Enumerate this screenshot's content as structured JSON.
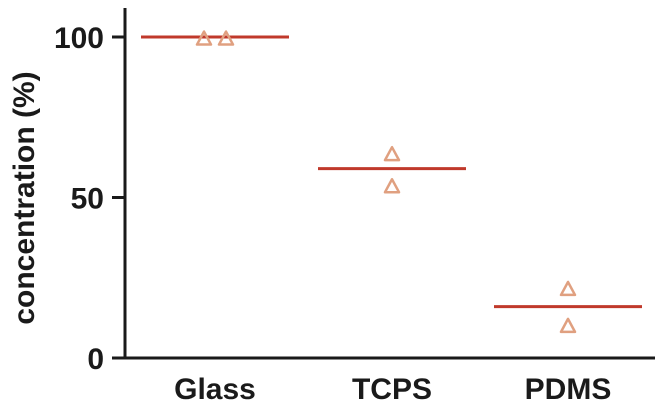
{
  "chart_data": {
    "type": "scatter",
    "title": "",
    "xlabel": "",
    "ylabel": "concentration (%)",
    "categories": [
      "Glass",
      "TCPS",
      "PDMS"
    ],
    "ylim": [
      0,
      100
    ],
    "yticks": [
      0,
      50,
      100
    ],
    "grid": false,
    "legend": "none",
    "points": [
      [
        99.5,
        99.5
      ],
      [
        63.5,
        53.5
      ],
      [
        21.5,
        10
      ]
    ],
    "means": [
      100,
      59,
      16
    ],
    "colors": {
      "points": "#e0a080",
      "mean_line": "#c0392b",
      "axis": "#1a1a1a"
    }
  }
}
